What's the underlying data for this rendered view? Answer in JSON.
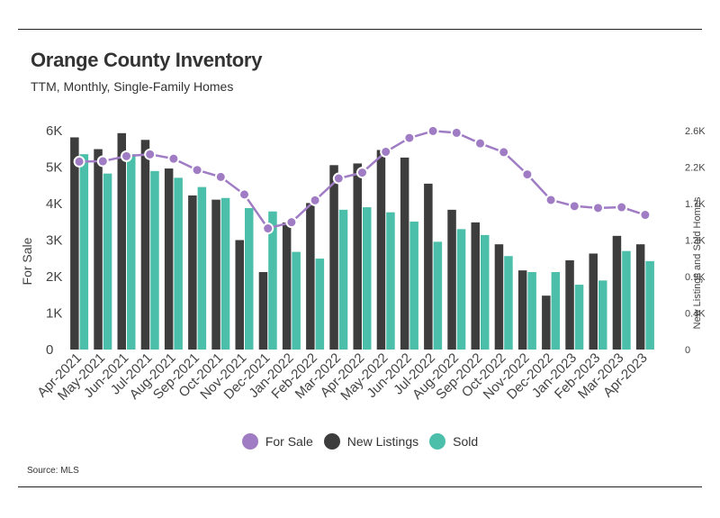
{
  "title": "Orange County Inventory",
  "subtitle": "TTM, Monthly, Single-Family Homes",
  "source": "Source: MLS",
  "colors": {
    "for_sale": "#a07cc5",
    "new_listings": "#3d3d3d",
    "sold": "#4bbfaa"
  },
  "chart_data": {
    "type": "bar",
    "title": "Orange County Inventory",
    "subtitle": "TTM, Monthly, Single-Family Homes",
    "categories": [
      "Apr-2021",
      "May-2021",
      "Jun-2021",
      "Jul-2021",
      "Aug-2021",
      "Sep-2021",
      "Oct-2021",
      "Nov-2021",
      "Dec-2021",
      "Jan-2022",
      "Feb-2022",
      "Mar-2022",
      "Apr-2022",
      "May-2022",
      "Jun-2022",
      "Jul-2022",
      "Aug-2022",
      "Sep-2022",
      "Oct-2022",
      "Nov-2022",
      "Dec-2022",
      "Jan-2023",
      "Feb-2023",
      "Mar-2023",
      "Apr-2023"
    ],
    "series": [
      {
        "name": "For Sale",
        "type": "line",
        "axis": "left",
        "values": [
          5150,
          5160,
          5300,
          5350,
          5230,
          4920,
          4730,
          4250,
          3320,
          3490,
          4090,
          4690,
          4850,
          5420,
          5800,
          5990,
          5940,
          5650,
          5410,
          4800,
          4100,
          3930,
          3880,
          3900,
          3690
        ]
      },
      {
        "name": "New Listings",
        "type": "bar",
        "axis": "right",
        "values": [
          2520,
          2380,
          2570,
          2490,
          2150,
          1830,
          1780,
          1300,
          920,
          1510,
          1740,
          2190,
          2210,
          2370,
          2280,
          1970,
          1660,
          1510,
          1250,
          940,
          640,
          1060,
          1140,
          1350,
          1250
        ]
      },
      {
        "name": "Sold",
        "type": "bar",
        "axis": "right",
        "values": [
          2320,
          2090,
          2320,
          2120,
          2040,
          1930,
          1800,
          1680,
          1640,
          1160,
          1080,
          1660,
          1690,
          1630,
          1520,
          1280,
          1430,
          1360,
          1110,
          920,
          920,
          770,
          820,
          1170,
          1050
        ]
      }
    ],
    "yaxis_left": {
      "label": "For Sale",
      "ticks": [
        "0",
        "1K",
        "2K",
        "3K",
        "4K",
        "5K",
        "6K"
      ],
      "lim": [
        0,
        6000
      ]
    },
    "yaxis_right": {
      "label": "New Listings and Sold Homes",
      "ticks": [
        "0",
        "0.4K",
        "0.9K",
        "1.3K",
        "1.7K",
        "2.2K",
        "2.6K"
      ],
      "lim": [
        0,
        2600
      ]
    },
    "grid": false,
    "legend": "bottom",
    "legend_entries": [
      "For Sale",
      "New Listings",
      "Sold"
    ]
  }
}
